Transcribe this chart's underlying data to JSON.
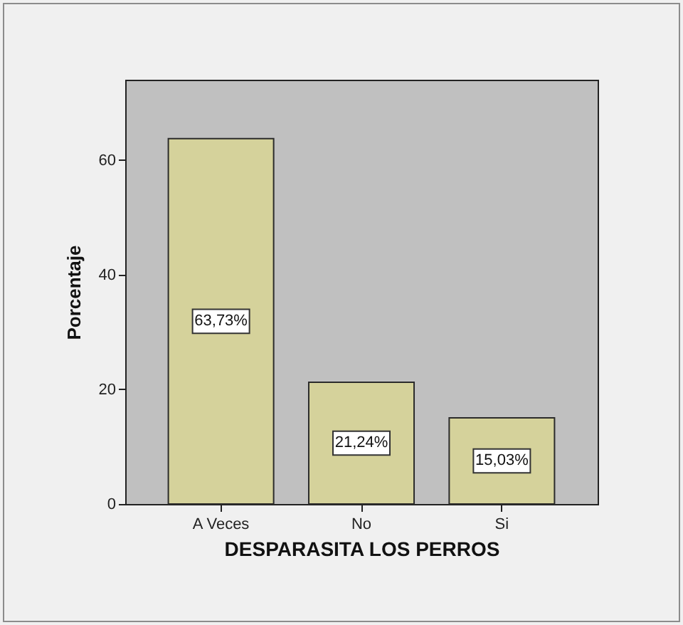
{
  "chart_data": {
    "type": "bar",
    "xlabel": "DESPARASITA LOS PERROS",
    "ylabel": "Porcentaje",
    "categories": [
      "A Veces",
      "No",
      "Si"
    ],
    "values": [
      63.73,
      21.24,
      15.03
    ],
    "color": "#d5d29b",
    "value_labels": [
      "63,73%",
      "21,24%",
      "15,03%"
    ],
    "ylim": [
      0,
      74
    ],
    "yticks": [
      0,
      20,
      40,
      60
    ]
  }
}
